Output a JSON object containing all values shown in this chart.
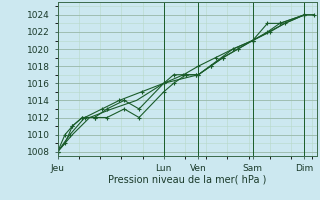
{
  "title": "Pression niveau de la mer( hPa )",
  "background_color": "#cce8f0",
  "grid_color_minor": "#b8d8c8",
  "grid_color_major": "#98b8a8",
  "line_color": "#1a5c2a",
  "ylim": [
    1007.5,
    1025.5
  ],
  "yticks": [
    1008,
    1010,
    1012,
    1014,
    1016,
    1018,
    1020,
    1022,
    1024
  ],
  "day_x": {
    "Jeu": 0,
    "Lun": 0.43,
    "Ven": 0.57,
    "Sam": 0.79,
    "Dim": 1.0
  },
  "xlim": [
    0,
    1.05
  ],
  "series1_x": [
    0.0,
    0.03,
    0.06,
    0.1,
    0.15,
    0.2,
    0.27,
    0.33,
    0.43,
    0.47,
    0.52,
    0.56,
    0.57,
    0.62,
    0.67,
    0.73,
    0.79,
    0.85,
    0.9,
    1.0
  ],
  "series1_y": [
    1008,
    1009,
    1011,
    1012,
    1012,
    1012,
    1013,
    1012,
    1015,
    1016,
    1017,
    1017,
    1017,
    1018,
    1019,
    1020,
    1021,
    1022,
    1023,
    1024
  ],
  "series2_x": [
    0.0,
    0.03,
    0.06,
    0.1,
    0.15,
    0.2,
    0.27,
    0.33,
    0.43,
    0.47,
    0.52,
    0.56,
    0.57,
    0.62,
    0.67,
    0.73,
    0.79,
    0.85,
    0.9,
    1.0
  ],
  "series2_y": [
    1008,
    1010,
    1011,
    1012,
    1012,
    1013,
    1014,
    1013,
    1016,
    1017,
    1017,
    1017,
    1017,
    1018,
    1019,
    1020,
    1021,
    1023,
    1023,
    1024
  ],
  "series3_x": [
    0.0,
    0.05,
    0.11,
    0.18,
    0.25,
    0.34,
    0.43,
    0.51,
    0.57,
    0.64,
    0.71,
    0.79,
    0.86,
    0.92,
    1.0,
    1.04
  ],
  "series3_y": [
    1008,
    1010,
    1012,
    1013,
    1014,
    1015,
    1016,
    1017,
    1018,
    1019,
    1020,
    1021,
    1022,
    1023,
    1024,
    1024
  ],
  "series4_x": [
    0.0,
    0.06,
    0.13,
    0.22,
    0.32,
    0.43,
    0.57,
    0.71,
    0.79,
    0.92,
    1.0,
    1.04
  ],
  "series4_y": [
    1008,
    1010,
    1012,
    1013,
    1014,
    1016,
    1017,
    1020,
    1021,
    1023,
    1024,
    1024
  ],
  "vline_x": [
    0.43,
    0.57,
    0.79,
    1.0
  ],
  "title_fontsize": 7.5,
  "tick_fontsize": 6.5,
  "xlabel_fontsize": 7.0
}
